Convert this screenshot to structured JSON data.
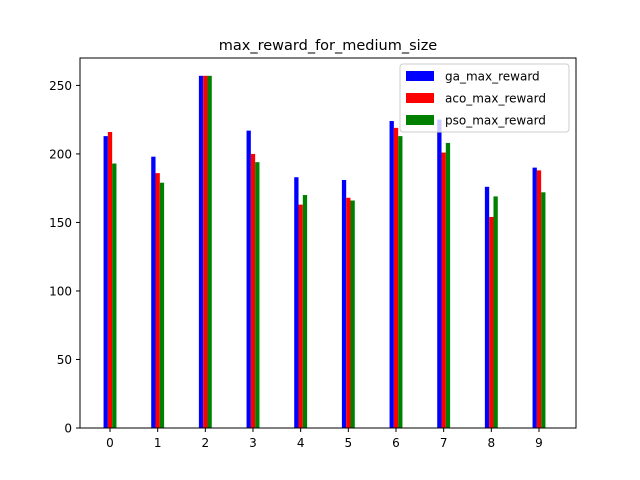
{
  "chart_data": {
    "type": "bar",
    "title": "max_reward_for_medium_size",
    "xlabel": "",
    "ylabel": "",
    "categories": [
      "0",
      "1",
      "2",
      "3",
      "4",
      "5",
      "6",
      "7",
      "8",
      "9"
    ],
    "ylim": [
      0,
      270
    ],
    "yticks": [
      0,
      50,
      100,
      150,
      200,
      250
    ],
    "grid": false,
    "legend_position": "top-right",
    "series": [
      {
        "name": "ga_max_reward",
        "color": "#0000ff",
        "values": [
          213,
          198,
          257,
          217,
          183,
          181,
          224,
          225,
          176,
          190
        ]
      },
      {
        "name": "aco_max_reward",
        "color": "#ff0000",
        "values": [
          216,
          186,
          257,
          200,
          163,
          168,
          219,
          201,
          154,
          188
        ]
      },
      {
        "name": "pso_max_reward",
        "color": "#008000",
        "values": [
          193,
          179,
          257,
          194,
          170,
          166,
          213,
          208,
          169,
          172
        ]
      }
    ]
  }
}
